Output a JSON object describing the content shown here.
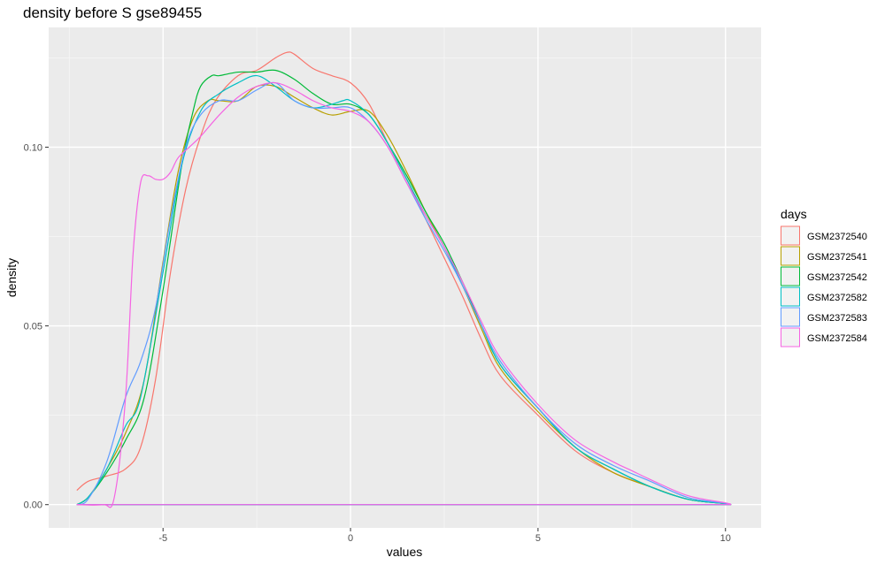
{
  "chart_data": {
    "type": "line",
    "title": "density before S gse89455",
    "xlabel": "values",
    "ylabel": "density",
    "xlim": [
      -8.05,
      10.95
    ],
    "ylim": [
      -0.0065,
      0.1335
    ],
    "x_ticks": [
      -5,
      0,
      5,
      10
    ],
    "x_tick_labels": [
      "-5",
      "0",
      "5",
      "10"
    ],
    "y_ticks": [
      0.0,
      0.05,
      0.1
    ],
    "y_tick_labels": [
      "0.00",
      "0.05",
      "0.10"
    ],
    "grid": true,
    "legend": {
      "title": "days",
      "position": "right"
    },
    "series": [
      {
        "name": "GSM2372540",
        "color": "#F8766D",
        "x": [
          -7.3,
          -7.0,
          -6.5,
          -6.0,
          -5.6,
          -5.2,
          -4.8,
          -4.4,
          -4.0,
          -3.6,
          -3.0,
          -2.5,
          -2.0,
          -1.7,
          -1.5,
          -1.0,
          -0.5,
          0.0,
          0.5,
          1.0,
          1.5,
          2.0,
          2.5,
          3.0,
          3.5,
          4.0,
          5.0,
          6.0,
          7.0,
          8.0,
          9.0,
          10.0,
          10.15
        ],
        "y": [
          0.004,
          0.0065,
          0.008,
          0.01,
          0.016,
          0.035,
          0.065,
          0.088,
          0.103,
          0.113,
          0.12,
          0.1215,
          0.125,
          0.1265,
          0.126,
          0.122,
          0.12,
          0.118,
          0.112,
          0.101,
          0.091,
          0.08,
          0.069,
          0.058,
          0.046,
          0.036,
          0.025,
          0.015,
          0.009,
          0.005,
          0.0015,
          0.0003,
          0.0
        ]
      },
      {
        "name": "GSM2372541",
        "color": "#B79F00",
        "x": [
          -7.3,
          -7.0,
          -6.5,
          -6.0,
          -5.5,
          -5.0,
          -4.6,
          -4.2,
          -3.8,
          -3.5,
          -3.0,
          -2.5,
          -2.0,
          -1.5,
          -1.0,
          -0.5,
          0.0,
          0.5,
          1.0,
          1.5,
          2.0,
          2.5,
          3.0,
          3.5,
          4.0,
          5.0,
          6.0,
          7.0,
          8.0,
          9.0,
          10.0,
          10.15
        ],
        "y": [
          0.0,
          0.002,
          0.01,
          0.02,
          0.035,
          0.068,
          0.093,
          0.108,
          0.113,
          0.113,
          0.113,
          0.117,
          0.117,
          0.114,
          0.111,
          0.109,
          0.11,
          0.11,
          0.103,
          0.093,
          0.082,
          0.072,
          0.061,
          0.049,
          0.038,
          0.026,
          0.016,
          0.009,
          0.005,
          0.0015,
          0.0003,
          0.0
        ]
      },
      {
        "name": "GSM2372542",
        "color": "#00BA38",
        "x": [
          -7.3,
          -7.0,
          -6.5,
          -6.0,
          -5.5,
          -5.0,
          -4.5,
          -4.2,
          -4.0,
          -3.7,
          -3.5,
          -3.0,
          -2.5,
          -2.0,
          -1.5,
          -1.0,
          -0.5,
          0.0,
          0.5,
          1.0,
          1.5,
          2.0,
          2.5,
          3.0,
          3.5,
          4.0,
          5.0,
          6.0,
          7.0,
          8.0,
          9.0,
          10.0,
          10.15
        ],
        "y": [
          0.0,
          0.002,
          0.009,
          0.018,
          0.03,
          0.06,
          0.095,
          0.11,
          0.117,
          0.12,
          0.12,
          0.121,
          0.121,
          0.1215,
          0.119,
          0.115,
          0.112,
          0.112,
          0.109,
          0.101,
          0.092,
          0.082,
          0.073,
          0.062,
          0.05,
          0.039,
          0.027,
          0.016,
          0.01,
          0.005,
          0.0015,
          0.0003,
          0.0
        ]
      },
      {
        "name": "GSM2372582",
        "color": "#00BFC4",
        "x": [
          -7.3,
          -7.0,
          -6.5,
          -6.0,
          -5.6,
          -5.0,
          -4.5,
          -4.0,
          -3.5,
          -3.0,
          -2.5,
          -2.0,
          -1.5,
          -1.0,
          -0.5,
          -0.2,
          0.0,
          0.5,
          1.0,
          1.5,
          2.0,
          2.5,
          3.0,
          3.5,
          4.0,
          5.0,
          6.0,
          7.0,
          8.0,
          9.0,
          10.0,
          10.15
        ],
        "y": [
          0.0,
          0.002,
          0.01,
          0.022,
          0.03,
          0.065,
          0.095,
          0.11,
          0.115,
          0.118,
          0.12,
          0.117,
          0.113,
          0.111,
          0.112,
          0.113,
          0.113,
          0.109,
          0.101,
          0.091,
          0.081,
          0.072,
          0.061,
          0.05,
          0.039,
          0.027,
          0.016,
          0.01,
          0.005,
          0.0015,
          0.0003,
          0.0
        ]
      },
      {
        "name": "GSM2372583",
        "color": "#619CFF",
        "x": [
          -7.3,
          -7.0,
          -6.5,
          -6.0,
          -5.6,
          -5.2,
          -4.8,
          -4.4,
          -4.0,
          -3.5,
          -3.0,
          -2.5,
          -2.0,
          -1.5,
          -1.0,
          -0.5,
          0.0,
          0.5,
          1.0,
          1.5,
          2.0,
          2.5,
          3.0,
          3.5,
          4.0,
          5.0,
          6.0,
          7.0,
          8.0,
          9.0,
          10.0,
          10.15
        ],
        "y": [
          0.0,
          0.0015,
          0.012,
          0.03,
          0.04,
          0.055,
          0.08,
          0.1,
          0.109,
          0.113,
          0.113,
          0.116,
          0.118,
          0.113,
          0.111,
          0.111,
          0.111,
          0.107,
          0.1,
          0.09,
          0.08,
          0.071,
          0.061,
          0.05,
          0.04,
          0.027,
          0.017,
          0.011,
          0.0065,
          0.002,
          0.0004,
          0.0
        ]
      },
      {
        "name": "GSM2372584",
        "color": "#F564E3",
        "x": [
          -7.3,
          -6.6,
          -6.3,
          -6.0,
          -5.8,
          -5.6,
          -5.4,
          -5.2,
          -5.0,
          -4.8,
          -4.6,
          -4.3,
          -4.0,
          -3.5,
          -3.0,
          -2.5,
          -2.0,
          -1.5,
          -1.0,
          -0.5,
          0.0,
          0.5,
          1.0,
          1.5,
          2.0,
          2.5,
          3.0,
          3.5,
          4.0,
          5.0,
          6.0,
          7.0,
          7.5,
          8.0,
          9.0,
          10.0,
          10.15
        ],
        "y": [
          0.0,
          0.0,
          0.002,
          0.03,
          0.07,
          0.09,
          0.092,
          0.091,
          0.091,
          0.093,
          0.097,
          0.1,
          0.103,
          0.109,
          0.114,
          0.117,
          0.118,
          0.116,
          0.113,
          0.111,
          0.11,
          0.107,
          0.1,
          0.09,
          0.081,
          0.072,
          0.062,
          0.051,
          0.041,
          0.028,
          0.018,
          0.012,
          0.0095,
          0.007,
          0.0025,
          0.0005,
          0.0
        ]
      }
    ]
  }
}
